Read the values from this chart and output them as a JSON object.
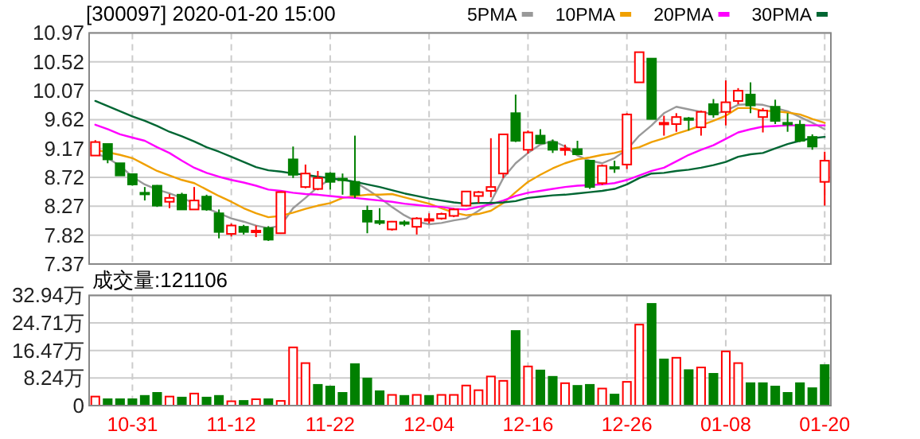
{
  "chart_data": [
    {
      "type": "candlestick",
      "title": "[300097] 2020-01-20 15:00",
      "categories": [
        null,
        null,
        null,
        null,
        null,
        null,
        null,
        null,
        null,
        null,
        null,
        null,
        null,
        null,
        null,
        null,
        null,
        null,
        null,
        null,
        null,
        null,
        null,
        null,
        null,
        null,
        null,
        null,
        null,
        null,
        null,
        null,
        null,
        null,
        null,
        null,
        null,
        null,
        null,
        null,
        null,
        null,
        null,
        null,
        null,
        null,
        null,
        null,
        null,
        null,
        null,
        null,
        null,
        null,
        null,
        null,
        null,
        null,
        null,
        null
      ],
      "ohlc": [
        [
          9.06,
          9.3,
          9.06,
          9.27
        ],
        [
          9.24,
          9.24,
          8.94,
          9.0
        ],
        [
          8.94,
          8.94,
          8.75,
          8.75
        ],
        [
          8.77,
          8.77,
          8.59,
          8.61
        ],
        [
          8.48,
          8.57,
          8.36,
          8.47
        ],
        [
          8.59,
          8.6,
          8.26,
          8.28
        ],
        [
          8.34,
          8.46,
          8.24,
          8.4
        ],
        [
          8.45,
          8.48,
          8.22,
          8.22
        ],
        [
          8.22,
          8.57,
          8.22,
          8.36
        ],
        [
          8.42,
          8.45,
          8.2,
          8.22
        ],
        [
          8.16,
          8.22,
          7.77,
          7.87
        ],
        [
          7.84,
          8.0,
          7.8,
          7.97
        ],
        [
          7.95,
          7.98,
          7.83,
          7.87
        ],
        [
          7.88,
          7.97,
          7.79,
          7.89
        ],
        [
          7.93,
          7.96,
          7.73,
          7.75
        ],
        [
          7.85,
          8.5,
          7.84,
          8.49
        ],
        [
          9.0,
          9.2,
          8.71,
          8.76
        ],
        [
          8.57,
          8.92,
          8.55,
          8.78
        ],
        [
          8.54,
          8.82,
          8.52,
          8.71
        ],
        [
          8.78,
          8.8,
          8.53,
          8.65
        ],
        [
          8.7,
          8.78,
          8.45,
          8.68
        ],
        [
          8.65,
          9.37,
          8.4,
          8.45
        ],
        [
          8.2,
          8.28,
          7.85,
          8.03
        ],
        [
          8.04,
          8.24,
          7.98,
          8.01
        ],
        [
          7.91,
          8.04,
          7.89,
          8.03
        ],
        [
          8.02,
          8.05,
          7.96,
          8.0
        ],
        [
          7.95,
          8.1,
          7.83,
          8.08
        ],
        [
          8.05,
          8.16,
          8.0,
          8.07
        ],
        [
          8.08,
          8.17,
          8.06,
          8.15
        ],
        [
          8.12,
          8.24,
          8.1,
          8.22
        ],
        [
          8.28,
          8.5,
          8.27,
          8.5
        ],
        [
          8.43,
          8.51,
          8.32,
          8.49
        ],
        [
          8.51,
          9.33,
          8.41,
          8.57
        ],
        [
          8.78,
          9.39,
          8.71,
          9.39
        ],
        [
          9.72,
          10.01,
          9.27,
          9.29
        ],
        [
          9.15,
          9.45,
          9.09,
          9.42
        ],
        [
          9.37,
          9.47,
          9.25,
          9.25
        ],
        [
          9.27,
          9.31,
          9.1,
          9.15
        ],
        [
          9.16,
          9.23,
          9.06,
          9.17
        ],
        [
          9.16,
          9.29,
          9.07,
          9.08
        ],
        [
          8.98,
          8.98,
          8.54,
          8.57
        ],
        [
          8.63,
          8.92,
          8.6,
          8.9
        ],
        [
          8.88,
          8.98,
          8.79,
          8.86
        ],
        [
          8.92,
          9.72,
          8.85,
          9.7
        ],
        [
          10.2,
          10.67,
          10.2,
          10.67
        ],
        [
          10.57,
          10.57,
          9.63,
          9.63
        ],
        [
          9.55,
          9.68,
          9.37,
          9.57
        ],
        [
          9.55,
          9.72,
          9.43,
          9.66
        ],
        [
          9.64,
          9.66,
          9.45,
          9.63
        ],
        [
          9.5,
          9.76,
          9.37,
          9.74
        ],
        [
          9.86,
          9.94,
          9.65,
          9.7
        ],
        [
          9.74,
          10.23,
          9.53,
          9.89
        ],
        [
          9.91,
          10.11,
          9.86,
          10.07
        ],
        [
          10.01,
          10.2,
          9.72,
          9.84
        ],
        [
          9.66,
          9.8,
          9.42,
          9.76
        ],
        [
          9.82,
          9.93,
          9.55,
          9.6
        ],
        [
          9.57,
          9.72,
          9.43,
          9.55
        ],
        [
          9.54,
          9.61,
          9.27,
          9.29
        ],
        [
          9.35,
          9.39,
          9.15,
          9.2
        ],
        [
          8.65,
          9.12,
          8.28,
          8.98
        ]
      ],
      "colors": [
        "#ff0000",
        "#008000",
        "#008000",
        "#008000",
        "#008000",
        "#008000",
        "#ff0000",
        "#008000",
        "#ff0000",
        "#008000",
        "#008000",
        "#ff0000",
        "#008000",
        "#ff0000",
        "#008000",
        "#ff0000",
        "#008000",
        "#ff0000",
        "#ff0000",
        "#008000",
        "#008000",
        "#008000",
        "#008000",
        "#008000",
        "#ff0000",
        "#008000",
        "#ff0000",
        "#ff0000",
        "#ff0000",
        "#ff0000",
        "#ff0000",
        "#ff0000",
        "#ff0000",
        "#ff0000",
        "#008000",
        "#ff0000",
        "#008000",
        "#008000",
        "#ff0000",
        "#008000",
        "#008000",
        "#ff0000",
        "#008000",
        "#ff0000",
        "#ff0000",
        "#008000",
        "#ff0000",
        "#ff0000",
        "#008000",
        "#ff0000",
        "#008000",
        "#ff0000",
        "#ff0000",
        "#008000",
        "#ff0000",
        "#008000",
        "#008000",
        "#008000",
        "#008000",
        "#ff0000"
      ],
      "series": [
        {
          "name": "5PMA",
          "type": "line",
          "color": "#999999",
          "values": [
            9.1,
            9.02,
            8.9,
            8.73,
            8.61,
            8.53,
            8.47,
            8.4,
            8.32,
            8.24,
            8.16,
            8.08,
            8.03,
            7.97,
            7.93,
            7.97,
            8.24,
            8.4,
            8.57,
            8.69,
            8.69,
            8.65,
            8.53,
            8.4,
            8.26,
            8.13,
            8.03,
            7.99,
            8.01,
            8.05,
            8.08,
            8.2,
            8.34,
            8.71,
            8.94,
            9.1,
            9.23,
            9.29,
            9.2,
            9.06,
            8.98,
            8.94,
            9.02,
            9.15,
            9.37,
            9.53,
            9.72,
            9.82,
            9.78,
            9.74,
            9.7,
            9.76,
            9.85,
            9.86,
            9.85,
            9.8,
            9.75,
            9.66,
            9.57,
            9.47
          ]
        },
        {
          "name": "10PMA",
          "type": "line",
          "color": "#f0a000",
          "values": [
            9.15,
            9.11,
            9.07,
            9.02,
            8.92,
            8.82,
            8.75,
            8.68,
            8.63,
            8.53,
            8.43,
            8.34,
            8.24,
            8.16,
            8.1,
            8.12,
            8.17,
            8.23,
            8.28,
            8.32,
            8.4,
            8.43,
            8.45,
            8.45,
            8.46,
            8.41,
            8.36,
            8.31,
            8.24,
            8.17,
            8.13,
            8.15,
            8.2,
            8.32,
            8.49,
            8.65,
            8.76,
            8.86,
            8.94,
            9.0,
            9.03,
            9.07,
            9.1,
            9.15,
            9.19,
            9.27,
            9.33,
            9.4,
            9.46,
            9.53,
            9.6,
            9.68,
            9.8,
            9.8,
            9.76,
            9.75,
            9.73,
            9.7,
            9.63,
            9.57
          ]
        },
        {
          "name": "20PMA",
          "type": "line",
          "color": "#ff00ff",
          "values": [
            9.54,
            9.47,
            9.39,
            9.34,
            9.29,
            9.19,
            9.1,
            8.98,
            8.87,
            8.79,
            8.73,
            8.68,
            8.64,
            8.59,
            8.53,
            8.51,
            8.48,
            8.46,
            8.45,
            8.43,
            8.41,
            8.4,
            8.38,
            8.36,
            8.34,
            8.31,
            8.29,
            8.27,
            8.26,
            8.23,
            8.22,
            8.26,
            8.3,
            8.36,
            8.43,
            8.48,
            8.51,
            8.54,
            8.57,
            8.59,
            8.6,
            8.61,
            8.63,
            8.68,
            8.75,
            8.82,
            8.87,
            8.97,
            9.07,
            9.15,
            9.22,
            9.32,
            9.42,
            9.47,
            9.51,
            9.52,
            9.53,
            9.53,
            9.53,
            9.53
          ]
        },
        {
          "name": "30PMA",
          "type": "line",
          "color": "#006633",
          "values": [
            9.91,
            9.83,
            9.75,
            9.67,
            9.6,
            9.52,
            9.43,
            9.36,
            9.28,
            9.19,
            9.12,
            9.04,
            8.96,
            8.88,
            8.83,
            8.81,
            8.78,
            8.76,
            8.73,
            8.71,
            8.68,
            8.65,
            8.61,
            8.57,
            8.52,
            8.47,
            8.43,
            8.39,
            8.36,
            8.33,
            8.31,
            8.32,
            8.32,
            8.33,
            8.35,
            8.4,
            8.42,
            8.44,
            8.45,
            8.47,
            8.49,
            8.51,
            8.54,
            8.61,
            8.71,
            8.78,
            8.79,
            8.82,
            8.84,
            8.87,
            8.91,
            8.96,
            9.04,
            9.08,
            9.1,
            9.17,
            9.24,
            9.29,
            9.33,
            9.35
          ]
        }
      ],
      "ylim": [
        7.37,
        10.97
      ],
      "yticks": [
        10.97,
        10.52,
        10.07,
        9.62,
        9.17,
        8.72,
        8.27,
        7.82,
        7.37
      ],
      "grid": true,
      "legend": "top right",
      "tick_labels": "y"
    },
    {
      "type": "bar",
      "title": "成交量:121106",
      "categories": [
        null,
        null,
        null,
        "10-31",
        null,
        null,
        null,
        null,
        null,
        null,
        null,
        "11-12",
        null,
        null,
        null,
        null,
        null,
        null,
        null,
        "11-22",
        null,
        null,
        null,
        null,
        null,
        null,
        null,
        "12-04",
        null,
        null,
        null,
        null,
        null,
        null,
        null,
        "12-16",
        null,
        null,
        null,
        null,
        null,
        null,
        null,
        "12-26",
        null,
        null,
        null,
        null,
        null,
        null,
        null,
        "01-08",
        null,
        null,
        null,
        null,
        null,
        null,
        null,
        "01-20"
      ],
      "values": [
        2.7,
        1.9,
        1.9,
        1.9,
        2.9,
        3.8,
        2.7,
        2.4,
        3.6,
        2.4,
        2.9,
        1.3,
        1.4,
        1.9,
        1.9,
        1.4,
        17.4,
        12.7,
        6.2,
        5.7,
        3.8,
        12.4,
        8.1,
        4.3,
        3.2,
        2.9,
        3.2,
        2.9,
        3.2,
        3.2,
        6.0,
        4.6,
        8.7,
        7.4,
        22.3,
        11.7,
        10.5,
        8.6,
        6.7,
        5.9,
        6.2,
        5.1,
        3.3,
        7.1,
        24.2,
        30.4,
        13.8,
        14.3,
        10.6,
        11.4,
        9.5,
        16.2,
        12.7,
        6.7,
        6.7,
        5.7,
        3.8,
        6.7,
        5.2,
        12.1
      ],
      "colors": [
        "#ff0000",
        "#008000",
        "#008000",
        "#008000",
        "#008000",
        "#008000",
        "#ff0000",
        "#008000",
        "#ff0000",
        "#008000",
        "#008000",
        "#ff0000",
        "#008000",
        "#ff0000",
        "#008000",
        "#ff0000",
        "#ff0000",
        "#ff0000",
        "#008000",
        "#008000",
        "#008000",
        "#008000",
        "#008000",
        "#008000",
        "#ff0000",
        "#008000",
        "#ff0000",
        "#008000",
        "#ff0000",
        "#ff0000",
        "#ff0000",
        "#ff0000",
        "#ff0000",
        "#ff0000",
        "#008000",
        "#ff0000",
        "#008000",
        "#008000",
        "#ff0000",
        "#008000",
        "#008000",
        "#ff0000",
        "#008000",
        "#ff0000",
        "#ff0000",
        "#008000",
        "#008000",
        "#ff0000",
        "#008000",
        "#ff0000",
        "#008000",
        "#ff0000",
        "#ff0000",
        "#008000",
        "#008000",
        "#008000",
        "#008000",
        "#008000",
        "#008000",
        "#008000"
      ],
      "ylim": [
        0,
        32.94
      ],
      "yticks": [
        0,
        {
          "value": 8.24,
          "label": "8.24万"
        },
        {
          "value": 16.47,
          "label": "16.47万"
        },
        {
          "value": 24.71,
          "label": "24.71万"
        },
        {
          "value": 32.94,
          "label": "32.94万"
        }
      ],
      "grid": true
    }
  ]
}
